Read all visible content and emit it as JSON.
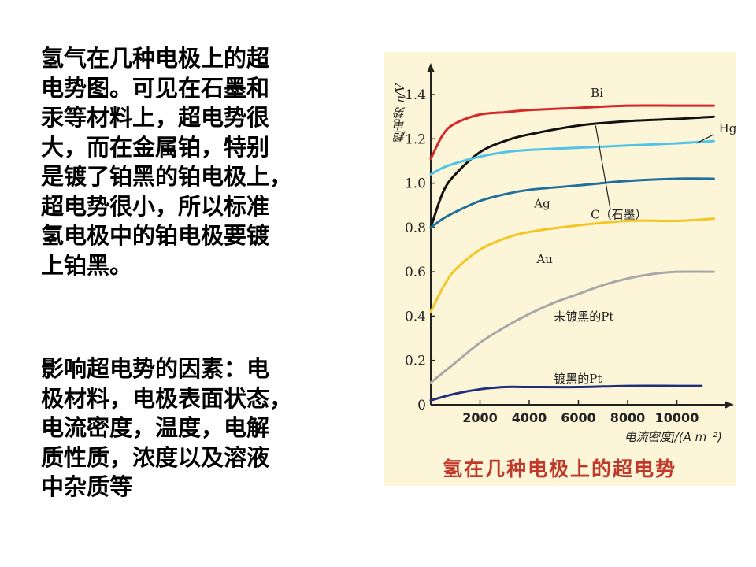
{
  "text": {
    "paragraph1_lines": [
      "氢气在几种电极上的超",
      "电势图。可见在石墨和",
      "汞等材料上，超电势很",
      "大，而在金属铂，特别",
      "是镀了铂黑的铂电极上，",
      "超电势很小，所以标准",
      "氢电极中的铂电极要镀",
      "上铂黑。"
    ],
    "paragraph2_lines": [
      "影响超电势的因素：电",
      "极材料，电极表面状态，",
      "电流密度，温度，电解",
      "质性质，浓度以及溶液",
      "中杂质等"
    ]
  },
  "chart_data": {
    "type": "line",
    "title": "氢在几种电极上的超电势",
    "xlabel": "电流密度j/(A m⁻²)",
    "ylabel": "超电势 η/V",
    "xlim": [
      0,
      12000
    ],
    "ylim": [
      0,
      1.45
    ],
    "x_ticks": [
      2000,
      4000,
      6000,
      8000,
      10000
    ],
    "y_ticks": [
      0,
      0.2,
      0.4,
      0.6,
      0.8,
      1.0,
      1.2,
      1.4
    ],
    "y_tick_labels": [
      "0",
      "0.2",
      "0.4",
      "0.6",
      "0.8",
      "1.0",
      "1.2",
      "1.4"
    ],
    "x_tick_labels": [
      "2000",
      "4000",
      "6000",
      "8000",
      "10000"
    ],
    "grid": false,
    "series": [
      {
        "name": "Bi",
        "color": "#d62828",
        "x": [
          0,
          500,
          1000,
          2000,
          3000,
          4000,
          6000,
          8000,
          10000,
          11500
        ],
        "y": [
          1.11,
          1.22,
          1.27,
          1.31,
          1.32,
          1.33,
          1.34,
          1.35,
          1.35,
          1.35
        ]
      },
      {
        "name": "C（石墨）",
        "color": "#111111",
        "x": [
          0,
          500,
          1000,
          2000,
          3000,
          4000,
          6000,
          8000,
          10000,
          11500
        ],
        "y": [
          0.8,
          0.96,
          1.04,
          1.14,
          1.19,
          1.22,
          1.26,
          1.28,
          1.29,
          1.3
        ]
      },
      {
        "name": "Hg",
        "color": "#4fc3e8",
        "x": [
          0,
          500,
          1000,
          2000,
          3000,
          4000,
          6000,
          8000,
          10000,
          11500
        ],
        "y": [
          1.04,
          1.07,
          1.09,
          1.12,
          1.14,
          1.15,
          1.16,
          1.17,
          1.18,
          1.19
        ]
      },
      {
        "name": "Ag",
        "color": "#1f6f9f",
        "x": [
          0,
          500,
          1000,
          2000,
          3000,
          4000,
          6000,
          8000,
          10000,
          11500
        ],
        "y": [
          0.8,
          0.84,
          0.87,
          0.92,
          0.95,
          0.97,
          0.99,
          1.01,
          1.02,
          1.02
        ]
      },
      {
        "name": "Au",
        "color": "#f3c623",
        "x": [
          0,
          500,
          1000,
          2000,
          3000,
          4000,
          6000,
          8000,
          10000,
          11500
        ],
        "y": [
          0.42,
          0.53,
          0.61,
          0.7,
          0.75,
          0.78,
          0.81,
          0.83,
          0.83,
          0.84
        ]
      },
      {
        "name": "未镀黑的Pt",
        "color": "#a8a8a8",
        "x": [
          0,
          1000,
          2000,
          3000,
          4000,
          5000,
          6000,
          7000,
          8000,
          9000,
          10000,
          11500
        ],
        "y": [
          0.1,
          0.19,
          0.28,
          0.35,
          0.41,
          0.46,
          0.5,
          0.54,
          0.57,
          0.59,
          0.6,
          0.6
        ]
      },
      {
        "name": "镀黑的Pt",
        "color": "#1f2f7a",
        "x": [
          0,
          1000,
          2000,
          3000,
          4000,
          6000,
          8000,
          10000,
          11000
        ],
        "y": [
          0.02,
          0.05,
          0.07,
          0.08,
          0.08,
          0.08,
          0.085,
          0.085,
          0.085
        ]
      }
    ],
    "annotations": [
      {
        "text": "Bi",
        "x": 6500,
        "y": 1.39
      },
      {
        "text": "Hg",
        "x": 11700,
        "y": 1.23
      },
      {
        "text": "Ag",
        "x": 4200,
        "y": 0.89
      },
      {
        "text": "C（石墨）",
        "x": 6500,
        "y": 0.84
      },
      {
        "text": "Au",
        "x": 4300,
        "y": 0.64
      },
      {
        "text": "未镀黑的Pt",
        "x": 5000,
        "y": 0.38
      },
      {
        "text": "镀黑的Pt",
        "x": 5000,
        "y": 0.1
      }
    ],
    "colors": {
      "background": "#fdf5d7",
      "caption": "#c0392b"
    }
  }
}
